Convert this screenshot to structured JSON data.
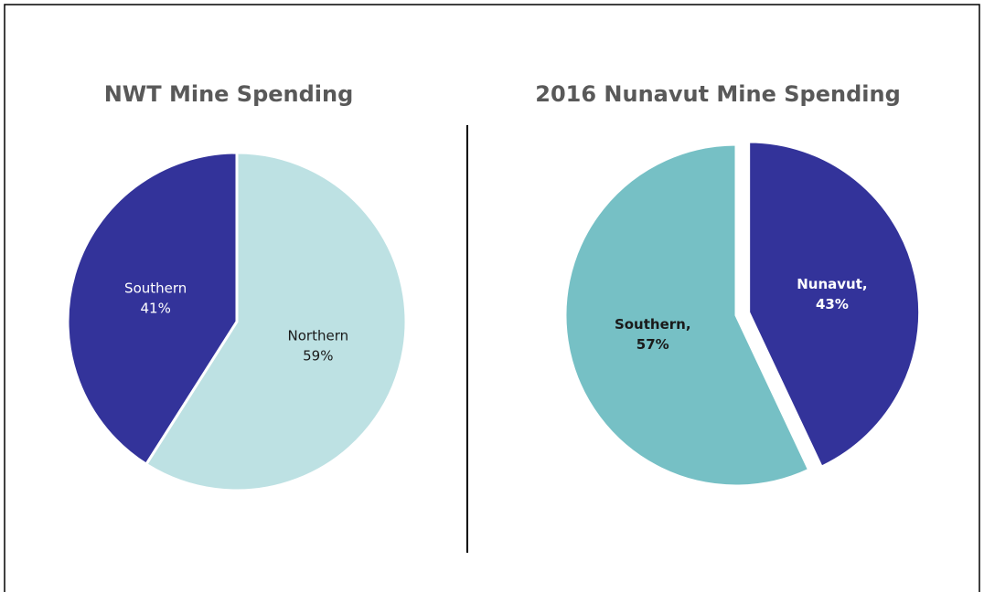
{
  "chart_data": [
    {
      "type": "pie",
      "title": "NWT Mine Spending",
      "categories": [
        "Northern",
        "Southern"
      ],
      "values": [
        59,
        41
      ],
      "value_labels": [
        "59%",
        "41%"
      ],
      "colors": [
        "#bde1e3",
        "#33339a"
      ],
      "label_colors": [
        "#1a1a1a",
        "#ffffff"
      ],
      "explode": [
        false,
        false
      ]
    },
    {
      "type": "pie",
      "title": "2016 Nunavut Mine Spending",
      "categories": [
        "Nunavut,",
        "Southern,"
      ],
      "values": [
        43,
        57
      ],
      "value_labels": [
        "43%",
        "57%"
      ],
      "colors": [
        "#33339a",
        "#76c0c5"
      ],
      "label_colors": [
        "#ffffff",
        "#1a1a1a"
      ],
      "explode": [
        true,
        false
      ]
    }
  ]
}
